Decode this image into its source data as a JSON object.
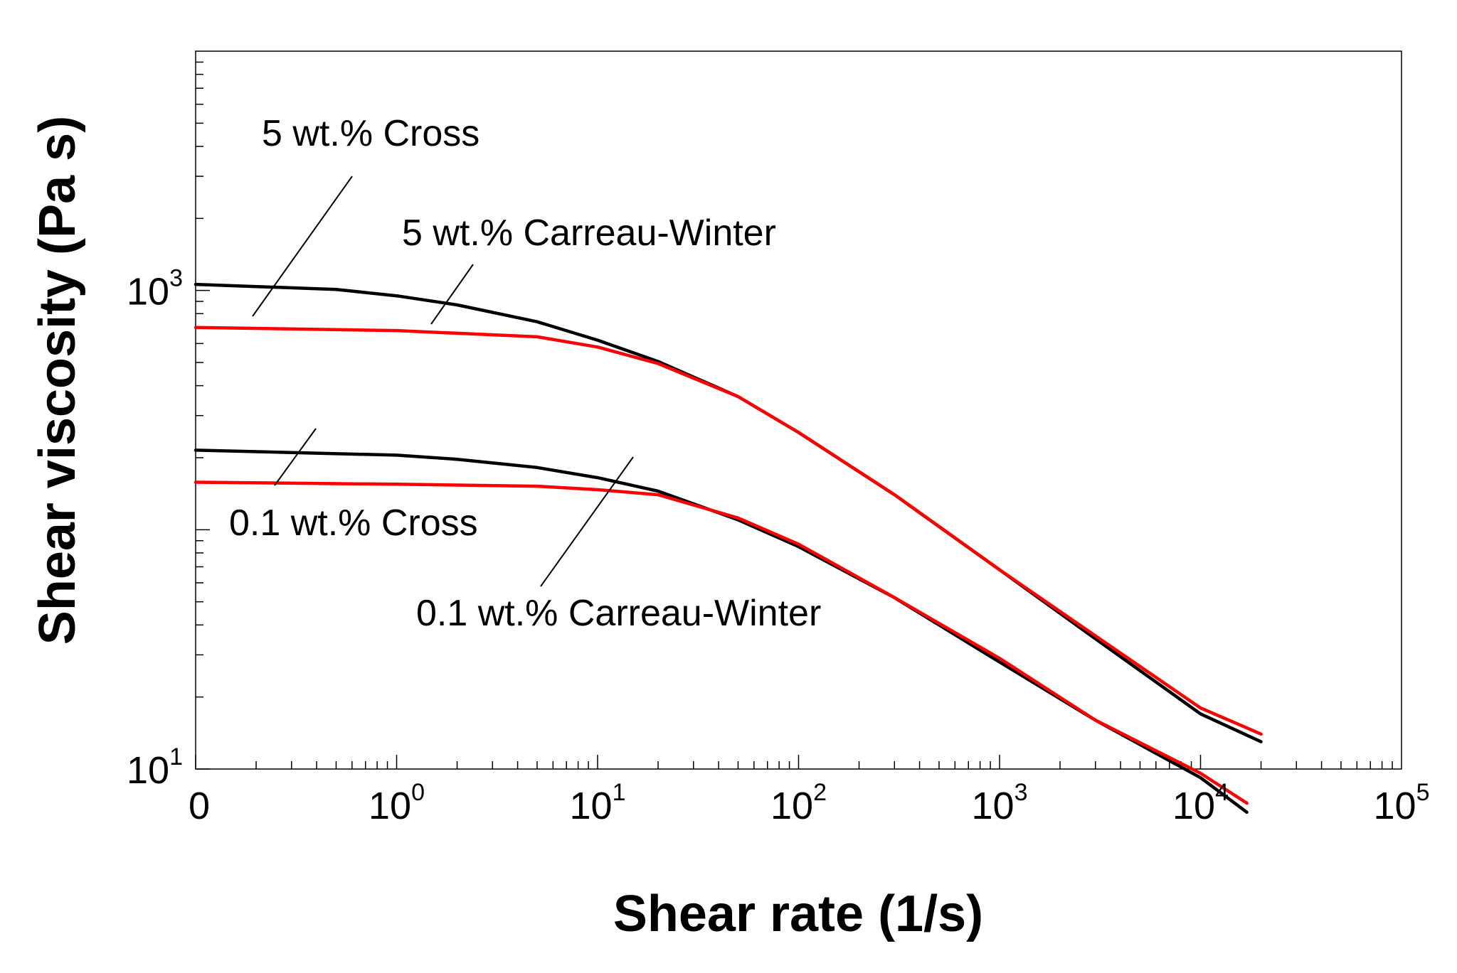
{
  "chart_data": {
    "type": "line",
    "xscale": "log",
    "yscale": "log",
    "xlabel": "Shear rate (1/s)",
    "ylabel": "Shear viscosity (Pa s)",
    "xlim": [
      0.1,
      100000
    ],
    "ylim": [
      10,
      10000
    ],
    "x_ticks": [
      {
        "value": 0.1,
        "base": "0",
        "exp": ""
      },
      {
        "value": 1,
        "base": "10",
        "exp": "0"
      },
      {
        "value": 10,
        "base": "10",
        "exp": "1"
      },
      {
        "value": 100,
        "base": "10",
        "exp": "2"
      },
      {
        "value": 1000,
        "base": "10",
        "exp": "3"
      },
      {
        "value": 10000,
        "base": "10",
        "exp": "4"
      },
      {
        "value": 100000,
        "base": "10",
        "exp": "5"
      }
    ],
    "y_ticks": [
      {
        "value": 10,
        "base": "10",
        "exp": "1"
      },
      {
        "value": 1000,
        "base": "10",
        "exp": "3"
      }
    ],
    "colors": {
      "cross": "#000000",
      "carreau_winter": "#ff0000"
    },
    "series": [
      {
        "name": "5 wt.% Cross",
        "color": "#000000",
        "x": [
          0.1,
          0.5,
          1,
          2,
          5,
          10,
          20,
          50,
          100,
          300,
          1000,
          3000,
          10000,
          20000
        ],
        "y": [
          1060,
          1010,
          950,
          870,
          740,
          620,
          505,
          360,
          255,
          140,
          68,
          35,
          17,
          13
        ]
      },
      {
        "name": "5 wt.% Carreau-Winter",
        "color": "#ff0000",
        "x": [
          0.1,
          1,
          5,
          10,
          20,
          50,
          100,
          300,
          1000,
          3000,
          10000,
          20000
        ],
        "y": [
          700,
          680,
          640,
          580,
          495,
          360,
          255,
          140,
          68,
          36,
          18,
          14
        ]
      },
      {
        "name": "0.1 wt.% Cross",
        "color": "#000000",
        "x": [
          0.1,
          1,
          2,
          5,
          10,
          20,
          50,
          100,
          300,
          1000,
          3000,
          10000,
          17000
        ],
        "y": [
          215,
          205,
          197,
          182,
          165,
          145,
          110,
          85,
          52,
          28,
          16,
          9.2,
          6.6
        ]
      },
      {
        "name": "0.1 wt.% Carreau-Winter",
        "color": "#ff0000",
        "x": [
          0.1,
          1,
          5,
          10,
          20,
          50,
          100,
          300,
          1000,
          3000,
          10000,
          17000
        ],
        "y": [
          158,
          155,
          152,
          147,
          140,
          112,
          87,
          52,
          29,
          16,
          9.6,
          7.2
        ]
      }
    ],
    "annotations": [
      {
        "text": "5 wt.% Cross",
        "target_series": "5 wt.% Cross"
      },
      {
        "text": "5 wt.% Carreau-Winter",
        "target_series": "5 wt.% Carreau-Winter"
      },
      {
        "text": "0.1 wt.% Cross",
        "target_series": "0.1 wt.% Cross"
      },
      {
        "text": "0.1 wt.% Carreau-Winter",
        "target_series": "0.1 wt.% Carreau-Winter"
      }
    ]
  }
}
